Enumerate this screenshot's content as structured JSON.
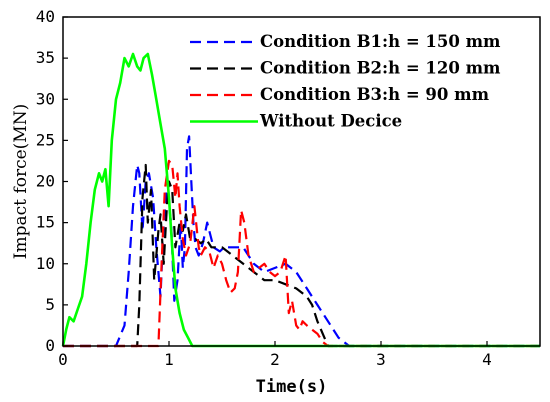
{
  "chart_data": {
    "type": "line",
    "title": "",
    "xlabel": "Time(s)",
    "ylabel": "Impact force(MN)",
    "xlim": [
      0,
      4.5
    ],
    "ylim": [
      0,
      40
    ],
    "xticks": [
      0,
      1,
      2,
      3,
      4
    ],
    "xtick_labels": [
      "0",
      "1",
      "2",
      "3",
      "4"
    ],
    "yticks": [
      0,
      5,
      10,
      15,
      20,
      25,
      30,
      35,
      40
    ],
    "ytick_labels": [
      "0",
      "5",
      "10",
      "15",
      "20",
      "25",
      "30",
      "35",
      "40"
    ],
    "grid": false,
    "legend_position": "top-right",
    "series": [
      {
        "name": "Condition B1:h = 150 mm",
        "color": "#0000ff",
        "dash": "dashed",
        "x": [
          0,
          0.5,
          0.58,
          0.62,
          0.66,
          0.7,
          0.72,
          0.75,
          0.78,
          0.81,
          0.85,
          0.88,
          0.92,
          0.95,
          0.98,
          1.02,
          1.05,
          1.08,
          1.11,
          1.13,
          1.15,
          1.17,
          1.19,
          1.21,
          1.23,
          1.25,
          1.28,
          1.32,
          1.36,
          1.42,
          1.48,
          1.52,
          1.56,
          1.62,
          1.7,
          1.8,
          1.9,
          2.0,
          2.1,
          2.15,
          2.2,
          2.3,
          2.4,
          2.5,
          2.6,
          2.65,
          2.7,
          4.5
        ],
        "y": [
          0,
          0,
          2.5,
          9,
          17,
          22,
          21,
          14,
          20,
          21,
          18,
          12,
          6,
          15,
          19,
          15,
          5.5,
          8,
          15,
          9.5,
          12,
          24,
          25.5,
          20,
          15,
          12,
          11,
          12.5,
          15,
          12,
          11.5,
          12,
          12,
          12,
          12,
          10,
          9,
          9.5,
          10,
          9.5,
          9,
          7,
          5,
          3,
          1,
          0.5,
          0,
          0
        ]
      },
      {
        "name": "Condition B2:h = 120 mm",
        "color": "#000000",
        "dash": "dashed",
        "x": [
          0,
          0.7,
          0.72,
          0.75,
          0.78,
          0.8,
          0.83,
          0.86,
          0.9,
          0.92,
          0.95,
          0.98,
          1.0,
          1.03,
          1.06,
          1.1,
          1.13,
          1.16,
          1.2,
          1.25,
          1.3,
          1.35,
          1.4,
          1.5,
          1.6,
          1.7,
          1.8,
          1.9,
          2.0,
          2.1,
          2.2,
          2.3,
          2.35,
          2.4,
          2.45,
          2.5,
          4.5
        ],
        "y": [
          0,
          0,
          5,
          18,
          22,
          15,
          19,
          8,
          14,
          16,
          10,
          17,
          20,
          19,
          12,
          15,
          14,
          16,
          13,
          13,
          12.5,
          13,
          12,
          12,
          11,
          10,
          9,
          8,
          8,
          7.5,
          7,
          6,
          5,
          3,
          1.5,
          0,
          0
        ]
      },
      {
        "name": "Condition B3:h = 90 mm",
        "color": "#ff0000",
        "dash": "dashed",
        "x": [
          0,
          0.9,
          0.93,
          0.96,
          1.0,
          1.03,
          1.06,
          1.08,
          1.1,
          1.13,
          1.16,
          1.2,
          1.24,
          1.28,
          1.3,
          1.34,
          1.38,
          1.42,
          1.46,
          1.5,
          1.54,
          1.58,
          1.62,
          1.65,
          1.68,
          1.71,
          1.75,
          1.8,
          1.85,
          1.9,
          1.95,
          2.0,
          2.05,
          2.1,
          2.13,
          2.16,
          2.2,
          2.23,
          2.26,
          2.3,
          2.35,
          2.4,
          2.45,
          2.5,
          4.5
        ],
        "y": [
          0,
          0,
          10,
          19,
          22.5,
          22,
          18,
          21,
          17,
          13,
          11,
          12.5,
          17,
          12,
          11,
          12,
          11.5,
          9.5,
          11,
          10,
          8,
          6.5,
          7,
          9,
          16.5,
          15,
          11,
          9,
          9.5,
          10,
          9,
          8.5,
          9,
          11,
          4,
          5.5,
          2.5,
          2,
          3,
          2.5,
          2,
          1.5,
          0.5,
          0,
          0
        ]
      },
      {
        "name": "Without Decice",
        "color": "#00ff00",
        "dash": "solid",
        "x": [
          0,
          0.03,
          0.06,
          0.1,
          0.14,
          0.18,
          0.22,
          0.26,
          0.3,
          0.34,
          0.37,
          0.4,
          0.43,
          0.46,
          0.5,
          0.54,
          0.58,
          0.62,
          0.66,
          0.7,
          0.73,
          0.76,
          0.8,
          0.84,
          0.88,
          0.92,
          0.96,
          1.0,
          1.03,
          1.06,
          1.1,
          1.14,
          1.18,
          1.22,
          1.26,
          1.3,
          4.5
        ],
        "y": [
          0,
          2,
          3.5,
          3,
          4.5,
          6,
          10,
          15,
          19,
          21,
          20,
          21.5,
          17,
          25,
          30,
          32,
          35,
          34,
          35.5,
          34,
          33.5,
          35,
          35.5,
          33,
          30,
          27,
          24,
          18,
          12,
          7,
          4,
          2,
          1,
          0,
          0,
          0,
          0
        ]
      }
    ]
  }
}
